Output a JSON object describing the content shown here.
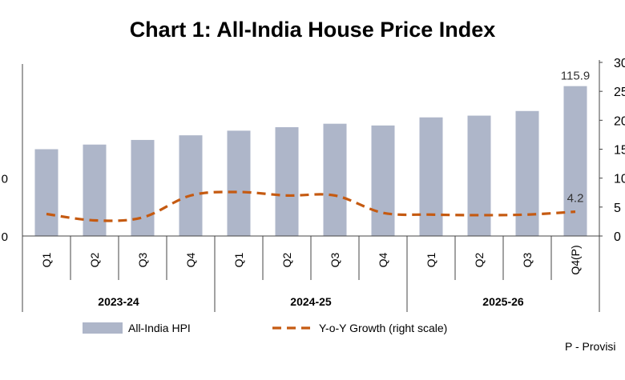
{
  "chart_data": {
    "type": "bar",
    "title": "Chart 1: All-India House Price Index",
    "categories": [
      "Q1",
      "Q2",
      "Q3",
      "Q4",
      "Q1",
      "Q2",
      "Q3",
      "Q4",
      "Q1",
      "Q2",
      "Q3",
      "Q4(P)"
    ],
    "groups": [
      {
        "label": "2023-24",
        "span": 4
      },
      {
        "label": "2024-25",
        "span": 4
      },
      {
        "label": "2025-26",
        "span": 4
      }
    ],
    "series": [
      {
        "name": "All-India HPI",
        "type": "bar",
        "axis": "left",
        "color": "#aeb6c9",
        "values": [
          105.0,
          105.8,
          106.6,
          107.4,
          108.2,
          108.8,
          109.4,
          109.1,
          110.5,
          110.8,
          111.6,
          115.9
        ]
      },
      {
        "name": "Y-o-Y Growth (right scale)",
        "type": "line",
        "axis": "right",
        "color": "#c55a11",
        "dash": true,
        "values": [
          3.8,
          2.7,
          3.2,
          7.0,
          7.6,
          7.0,
          7.0,
          4.0,
          3.7,
          3.6,
          3.7,
          4.2
        ]
      }
    ],
    "left_axis": {
      "ylim": [
        90,
        120
      ],
      "visible_ticks": [
        {
          "value": 100,
          "label": "0"
        },
        {
          "value": 90,
          "label": "0"
        }
      ]
    },
    "right_axis": {
      "ylim": [
        0,
        30
      ],
      "ticks": [
        0,
        5,
        10,
        15,
        20,
        25,
        30
      ],
      "tick_labels": [
        "0",
        "5",
        "10",
        "15",
        "20",
        "25",
        "30"
      ]
    },
    "annotations": [
      {
        "text": "115.9",
        "series": 0,
        "index": 11
      },
      {
        "text": "4.2",
        "series": 1,
        "index": 11
      }
    ],
    "legend": {
      "position": "bottom",
      "items": [
        "All-India HPI",
        "Y-o-Y Growth (right scale)"
      ]
    },
    "footnote": "P - Provisi",
    "grid": false
  }
}
